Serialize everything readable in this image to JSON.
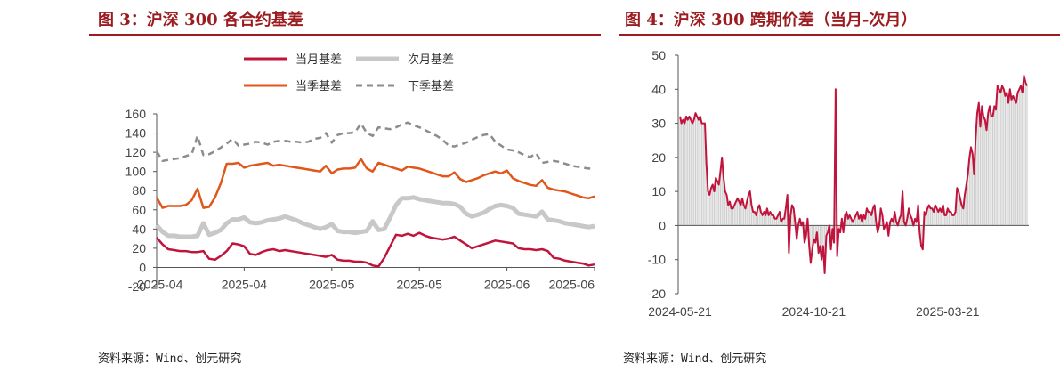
{
  "figures": [
    {
      "title": "图 3：沪深 300 各合约基差",
      "source": "资料来源：Wind、创元研究"
    },
    {
      "title": "图 4：沪深 300 跨期价差（当月-次月）",
      "source": "资料来源：Wind、创元研究"
    }
  ],
  "chart_data": [
    {
      "type": "line",
      "ylim": [
        -20,
        160
      ],
      "yticks": [
        -20,
        0,
        20,
        40,
        60,
        80,
        100,
        120,
        140,
        160
      ],
      "xtick_labels": [
        "2025-04",
        "2025-04",
        "2025-05",
        "2025-05",
        "2025-06",
        "2025-06"
      ],
      "grid": false,
      "legend_position": "top",
      "series": [
        {
          "name": "当月基差",
          "color": "#c0143c",
          "dash": "solid",
          "values": [
            31,
            24,
            19,
            18,
            17,
            17,
            16,
            16,
            17,
            9,
            8,
            12,
            17,
            25,
            24,
            22,
            14,
            13,
            16,
            18,
            19,
            17,
            18,
            17,
            16,
            15,
            14,
            13,
            12,
            11,
            13,
            8,
            7,
            7,
            6,
            6,
            5,
            2,
            1,
            10,
            22,
            34,
            33,
            35,
            33,
            36,
            33,
            31,
            30,
            29,
            30,
            32,
            28,
            24,
            20,
            22,
            24,
            26,
            28,
            27,
            26,
            25,
            20,
            19,
            19,
            18,
            19,
            17,
            10,
            9,
            7,
            6,
            5,
            4,
            2,
            3
          ]
        },
        {
          "name": "次月基差",
          "color": "#c8c8c8",
          "dash": "solid",
          "values": [
            44,
            37,
            33,
            33,
            32,
            32,
            32,
            33,
            46,
            34,
            36,
            39,
            46,
            50,
            50,
            52,
            47,
            46,
            47,
            49,
            50,
            51,
            53,
            51,
            49,
            46,
            44,
            42,
            40,
            42,
            45,
            38,
            37,
            37,
            36,
            37,
            38,
            48,
            39,
            40,
            52,
            65,
            72,
            72,
            73,
            71,
            70,
            69,
            68,
            67,
            67,
            66,
            63,
            56,
            53,
            55,
            57,
            61,
            64,
            65,
            64,
            62,
            56,
            55,
            54,
            53,
            58,
            50,
            49,
            48,
            46,
            45,
            44,
            43,
            42,
            43
          ]
        },
        {
          "name": "当季基差",
          "color": "#e0561b",
          "dash": "solid",
          "values": [
            73,
            62,
            64,
            64,
            64,
            65,
            70,
            82,
            62,
            63,
            73,
            88,
            108,
            108,
            109,
            104,
            106,
            107,
            108,
            109,
            106,
            107,
            106,
            105,
            104,
            103,
            102,
            101,
            100,
            106,
            98,
            102,
            103,
            103,
            104,
            113,
            103,
            100,
            109,
            107,
            105,
            103,
            101,
            105,
            104,
            103,
            101,
            99,
            97,
            95,
            95,
            99,
            92,
            89,
            91,
            93,
            96,
            98,
            100,
            98,
            101,
            93,
            90,
            88,
            86,
            85,
            91,
            83,
            81,
            80,
            79,
            77,
            75,
            73,
            72,
            74
          ]
        },
        {
          "name": "下季基差",
          "color": "#8c8c8c",
          "dash": "dashed",
          "values": [
            121,
            111,
            112,
            113,
            114,
            116,
            118,
            137,
            117,
            118,
            121,
            125,
            129,
            134,
            127,
            128,
            129,
            131,
            130,
            128,
            131,
            132,
            132,
            131,
            131,
            130,
            131,
            134,
            135,
            140,
            130,
            138,
            140,
            140,
            141,
            150,
            140,
            137,
            146,
            145,
            144,
            146,
            149,
            151,
            148,
            146,
            143,
            140,
            137,
            133,
            127,
            126,
            128,
            130,
            133,
            136,
            138,
            139,
            131,
            127,
            123,
            122,
            120,
            117,
            115,
            119,
            109,
            110,
            111,
            110,
            108,
            106,
            105,
            104,
            103,
            103
          ]
        }
      ]
    },
    {
      "type": "line",
      "ylim": [
        -20,
        50
      ],
      "yticks": [
        -20,
        -10,
        0,
        10,
        20,
        30,
        40,
        50
      ],
      "xtick_labels": [
        "2024-05-21",
        "2024-10-21",
        "2025-03-21"
      ],
      "grid": false,
      "series": [
        {
          "name": "",
          "color": "#c0143c",
          "dash": "solid",
          "bars_color": "#cfcfcf",
          "values": [
            32,
            30,
            31,
            30,
            32,
            31,
            32,
            31,
            30,
            31,
            33,
            32,
            31,
            32,
            30,
            30,
            30,
            18,
            10,
            9,
            11,
            12,
            10,
            14,
            13,
            12,
            16,
            20,
            14,
            10,
            9,
            6,
            7,
            5,
            5,
            6,
            7,
            8,
            7,
            6,
            8,
            6,
            5,
            7,
            9,
            10,
            6,
            4,
            4,
            3,
            5,
            6,
            4,
            3,
            4,
            3,
            5,
            3,
            4,
            3,
            3,
            2,
            2,
            3,
            4,
            1,
            2,
            2,
            5,
            9,
            -8,
            3,
            6,
            5,
            1,
            -4,
            0,
            2,
            0,
            1,
            -5,
            -3,
            2,
            -6,
            -11,
            -7,
            -4,
            -5,
            -2,
            -8,
            -6,
            -10,
            -6,
            -14,
            -3,
            -2,
            0,
            -7,
            -1,
            -5,
            40,
            -9,
            -1,
            -2,
            2,
            -2,
            3,
            4,
            2,
            3,
            2,
            1,
            2,
            3,
            4,
            2,
            3,
            1,
            3,
            2,
            5,
            4,
            4,
            3,
            5,
            6,
            1,
            -2,
            0,
            5,
            3,
            -1,
            0,
            1,
            -3,
            1,
            2,
            1,
            4,
            1,
            0,
            2,
            3,
            10,
            1,
            0,
            2,
            5,
            3,
            2,
            0,
            2,
            1,
            6,
            -2,
            -6,
            -7,
            4,
            3,
            5,
            6,
            5,
            5,
            4,
            6,
            5,
            4,
            5,
            4,
            6,
            3,
            3,
            5,
            4,
            4,
            3,
            3,
            4,
            11,
            10,
            8,
            6,
            5,
            9,
            12,
            15,
            20,
            23,
            21,
            15,
            26,
            33,
            36,
            29,
            35,
            32,
            31,
            28,
            33,
            35,
            32,
            32,
            35,
            34,
            41,
            40,
            39,
            41,
            40,
            38,
            39,
            36,
            40,
            37,
            38,
            37,
            36,
            39,
            40,
            41,
            39,
            44,
            42,
            41
          ]
        }
      ]
    }
  ]
}
